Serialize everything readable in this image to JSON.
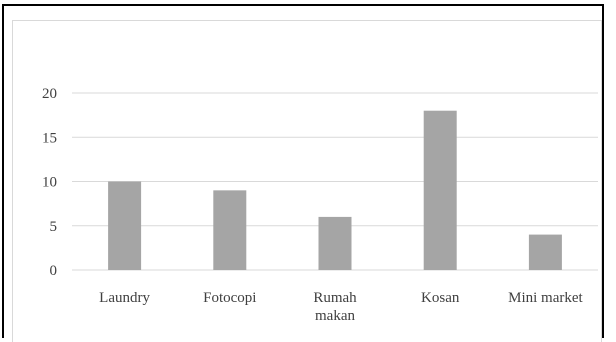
{
  "chart_data": {
    "type": "bar",
    "title": "",
    "xlabel": "",
    "ylabel": "",
    "categories": [
      [
        "Laundry"
      ],
      [
        "Fotocopi"
      ],
      [
        "Rumah",
        "makan"
      ],
      [
        "Kosan"
      ],
      [
        "Mini market"
      ]
    ],
    "values": [
      10,
      9,
      6,
      18,
      4
    ],
    "ylim": [
      0,
      20
    ],
    "yticks": [
      0,
      5,
      10,
      15,
      20
    ],
    "grid": true,
    "legend": "none",
    "bar_color": "#a5a5a5",
    "grid_color": "#d9d9d9",
    "text_color": "#404040"
  }
}
